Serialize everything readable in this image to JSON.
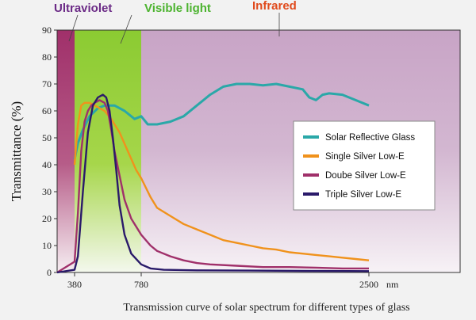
{
  "chart_data": {
    "type": "line",
    "caption": "Transmission curve of solar spectrum for different types of glass",
    "ylabel": "Transmittance (%)",
    "xunit": "nm",
    "ylim": [
      0,
      90
    ],
    "yticks": [
      0,
      10,
      20,
      30,
      40,
      50,
      60,
      70,
      80,
      90
    ],
    "xticks": [
      380,
      780,
      2500
    ],
    "regions": [
      {
        "name": "Ultraviolet",
        "color": "#6b2a86",
        "fill": "#a0306a"
      },
      {
        "name": "Visible light",
        "color": "#4cb32f",
        "fill": "#8bcb32"
      },
      {
        "name": "Infrared",
        "color": "#e04a1c",
        "fill": "#c8a0c0"
      }
    ],
    "series": [
      {
        "name": "Solar Reflective Glass",
        "color": "#2aa8a8",
        "points": [
          [
            380,
            42
          ],
          [
            400,
            48
          ],
          [
            430,
            53
          ],
          [
            470,
            58
          ],
          [
            520,
            61
          ],
          [
            560,
            62
          ],
          [
            620,
            62
          ],
          [
            680,
            60
          ],
          [
            740,
            57
          ],
          [
            780,
            58
          ],
          [
            830,
            55
          ],
          [
            900,
            55
          ],
          [
            1000,
            56
          ],
          [
            1100,
            58
          ],
          [
            1200,
            62
          ],
          [
            1300,
            66
          ],
          [
            1400,
            69
          ],
          [
            1500,
            70
          ],
          [
            1600,
            70
          ],
          [
            1700,
            69.5
          ],
          [
            1800,
            70
          ],
          [
            1900,
            69
          ],
          [
            2000,
            68
          ],
          [
            2050,
            65
          ],
          [
            2100,
            64
          ],
          [
            2150,
            66
          ],
          [
            2200,
            66.5
          ],
          [
            2300,
            66
          ],
          [
            2400,
            64
          ],
          [
            2500,
            62
          ]
        ]
      },
      {
        "name": "Single Silver Low-E",
        "color": "#f0921c",
        "points": [
          [
            380,
            40
          ],
          [
            400,
            55
          ],
          [
            420,
            62
          ],
          [
            440,
            63
          ],
          [
            470,
            63
          ],
          [
            500,
            62
          ],
          [
            530,
            61
          ],
          [
            560,
            60
          ],
          [
            600,
            57
          ],
          [
            650,
            52
          ],
          [
            700,
            45
          ],
          [
            750,
            38
          ],
          [
            780,
            35
          ],
          [
            850,
            28
          ],
          [
            900,
            24
          ],
          [
            1000,
            21
          ],
          [
            1100,
            18
          ],
          [
            1200,
            16
          ],
          [
            1300,
            14
          ],
          [
            1400,
            12
          ],
          [
            1500,
            11
          ],
          [
            1600,
            10
          ],
          [
            1700,
            9
          ],
          [
            1800,
            8.5
          ],
          [
            1900,
            7.5
          ],
          [
            2000,
            7
          ],
          [
            2100,
            6.5
          ],
          [
            2200,
            6
          ],
          [
            2300,
            5.5
          ],
          [
            2400,
            5
          ],
          [
            2500,
            4.5
          ]
        ]
      },
      {
        "name": "Doube Silver Low-E",
        "color": "#a0306a",
        "points": [
          [
            330,
            0
          ],
          [
            380,
            4
          ],
          [
            400,
            22
          ],
          [
            420,
            45
          ],
          [
            440,
            56
          ],
          [
            460,
            60
          ],
          [
            480,
            62
          ],
          [
            500,
            63
          ],
          [
            530,
            64
          ],
          [
            560,
            63
          ],
          [
            580,
            60
          ],
          [
            600,
            53
          ],
          [
            620,
            45
          ],
          [
            650,
            36
          ],
          [
            680,
            27
          ],
          [
            720,
            20
          ],
          [
            780,
            14
          ],
          [
            850,
            10
          ],
          [
            900,
            8
          ],
          [
            1000,
            6
          ],
          [
            1100,
            4.5
          ],
          [
            1200,
            3.5
          ],
          [
            1300,
            3
          ],
          [
            1500,
            2.5
          ],
          [
            1700,
            2
          ],
          [
            1900,
            2
          ],
          [
            2100,
            1.8
          ],
          [
            2300,
            1.5
          ],
          [
            2500,
            1.5
          ]
        ]
      },
      {
        "name": "Triple Silver Low-E",
        "color": "#2a1a6a",
        "points": [
          [
            330,
            0
          ],
          [
            380,
            1
          ],
          [
            400,
            6
          ],
          [
            430,
            30
          ],
          [
            460,
            52
          ],
          [
            490,
            62
          ],
          [
            520,
            65
          ],
          [
            550,
            66
          ],
          [
            570,
            65
          ],
          [
            590,
            60
          ],
          [
            610,
            50
          ],
          [
            630,
            38
          ],
          [
            650,
            25
          ],
          [
            680,
            14
          ],
          [
            720,
            7
          ],
          [
            780,
            3
          ],
          [
            850,
            1.5
          ],
          [
            950,
            1
          ],
          [
            1200,
            0.8
          ],
          [
            1600,
            0.7
          ],
          [
            2000,
            0.6
          ],
          [
            2500,
            0.5
          ]
        ]
      }
    ]
  }
}
